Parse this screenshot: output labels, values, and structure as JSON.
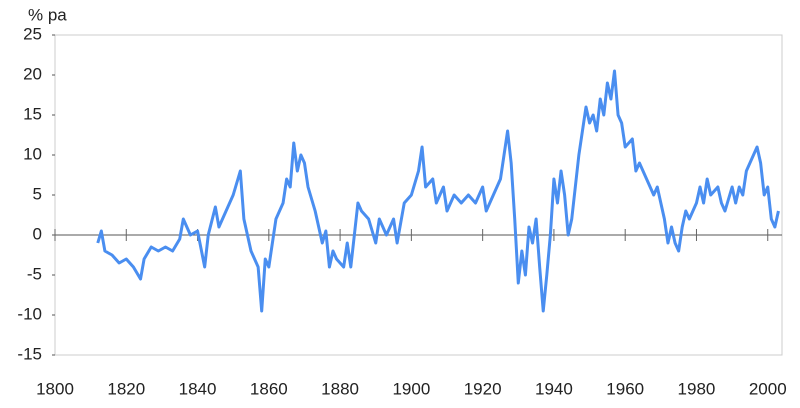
{
  "chart_data": {
    "type": "line",
    "ylabel": "% pa",
    "x": [
      1812,
      1813,
      1814,
      1816,
      1818,
      1820,
      1822,
      1824,
      1825,
      1827,
      1829,
      1831,
      1833,
      1835,
      1836,
      1838,
      1840,
      1842,
      1843,
      1845,
      1846,
      1848,
      1850,
      1852,
      1853,
      1855,
      1857,
      1858,
      1859,
      1860,
      1861,
      1862,
      1864,
      1865,
      1866,
      1867,
      1868,
      1869,
      1870,
      1871,
      1873,
      1874,
      1875,
      1876,
      1877,
      1878,
      1879,
      1881,
      1882,
      1883,
      1884,
      1885,
      1886,
      1888,
      1890,
      1891,
      1893,
      1895,
      1896,
      1898,
      1900,
      1902,
      1903,
      1904,
      1906,
      1907,
      1909,
      1910,
      1912,
      1914,
      1916,
      1918,
      1920,
      1921,
      1923,
      1925,
      1926,
      1927,
      1928,
      1929,
      1930,
      1931,
      1932,
      1933,
      1934,
      1935,
      1936,
      1937,
      1938,
      1939,
      1940,
      1941,
      1942,
      1943,
      1944,
      1945,
      1946,
      1947,
      1948,
      1949,
      1950,
      1951,
      1952,
      1953,
      1954,
      1955,
      1956,
      1957,
      1958,
      1959,
      1960,
      1962,
      1963,
      1964,
      1966,
      1968,
      1969,
      1970,
      1971,
      1972,
      1973,
      1974,
      1975,
      1976,
      1977,
      1978,
      1980,
      1981,
      1982,
      1983,
      1984,
      1986,
      1987,
      1988,
      1990,
      1991,
      1992,
      1993,
      1994,
      1995,
      1996,
      1997,
      1998,
      1999,
      2000,
      2001,
      2002,
      2003
    ],
    "series": [
      {
        "name": "% pa",
        "color": "#4a8ef0",
        "values": [
          -1,
          0.5,
          -2,
          -2.5,
          -3.5,
          -3,
          -4,
          -5.5,
          -3,
          -1.5,
          -2,
          -1.5,
          -2,
          -0.5,
          2,
          0,
          0.5,
          -4,
          0,
          3.5,
          1,
          3,
          5,
          8,
          2,
          -2,
          -4,
          -9.5,
          -3,
          -4,
          -1,
          2,
          4,
          7,
          6,
          11.5,
          8,
          10,
          9,
          6,
          3,
          1,
          -1,
          0.5,
          -4,
          -2,
          -3,
          -4,
          -1,
          -4,
          0,
          4,
          3,
          2,
          -1,
          2,
          0,
          2,
          -1,
          4,
          5,
          8,
          11,
          6,
          7,
          4,
          6,
          3,
          5,
          4,
          5,
          4,
          6,
          3,
          5,
          7,
          10,
          13,
          9,
          2,
          -6,
          -2,
          -5,
          1,
          -1,
          2,
          -4,
          -9.5,
          -5,
          0,
          7,
          4,
          8,
          5,
          0,
          2,
          6,
          10,
          13,
          16,
          14,
          15,
          13,
          17,
          15,
          19,
          17,
          20.5,
          15,
          14,
          11,
          12,
          8,
          9,
          7,
          5,
          6,
          4,
          2,
          -1,
          1,
          -1,
          -2,
          1,
          3,
          2,
          4,
          6,
          4,
          7,
          5,
          6,
          4,
          3,
          6,
          4,
          6,
          5,
          8,
          9,
          10,
          11,
          9,
          5,
          6,
          2,
          1,
          3
        ]
      }
    ],
    "xlim": [
      1800,
      2004
    ],
    "ylim": [
      -15,
      25
    ],
    "xticks": [
      1800,
      1820,
      1840,
      1860,
      1880,
      1900,
      1920,
      1940,
      1960,
      1980,
      2000
    ],
    "yticks": [
      -15,
      -10,
      -5,
      0,
      5,
      10,
      15,
      20,
      25
    ]
  }
}
